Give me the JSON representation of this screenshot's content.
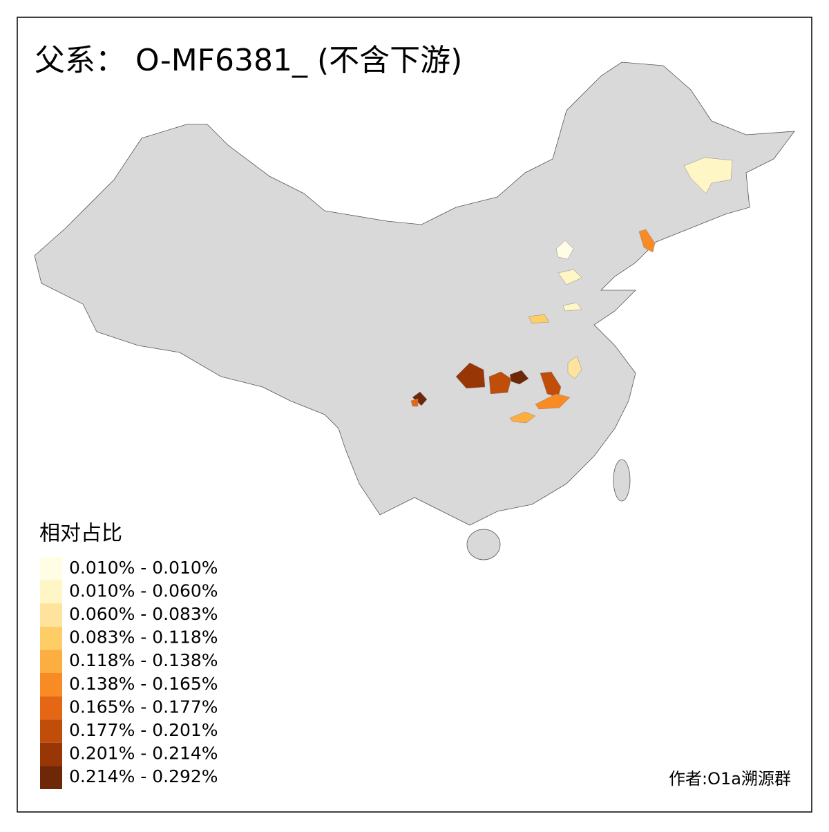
{
  "title": "父系： O-MF6381_ (不含下游)",
  "legend": {
    "title": "相对占比",
    "items": [
      {
        "label": "0.010% - 0.010%",
        "color": "#fffee5"
      },
      {
        "label": "0.010% - 0.060%",
        "color": "#fff6c5"
      },
      {
        "label": "0.060% - 0.083%",
        "color": "#fee39c"
      },
      {
        "label": "0.083% - 0.118%",
        "color": "#fecd66"
      },
      {
        "label": "0.118% - 0.138%",
        "color": "#fdae40"
      },
      {
        "label": "0.138% - 0.165%",
        "color": "#f98b25"
      },
      {
        "label": "0.165% - 0.177%",
        "color": "#e56716"
      },
      {
        "label": "0.177% - 0.201%",
        "color": "#c04d0a"
      },
      {
        "label": "0.201% - 0.214%",
        "color": "#983606"
      },
      {
        "label": "0.214% - 0.292%",
        "color": "#6e2707"
      }
    ]
  },
  "author": "作者:O1a溯源群"
}
